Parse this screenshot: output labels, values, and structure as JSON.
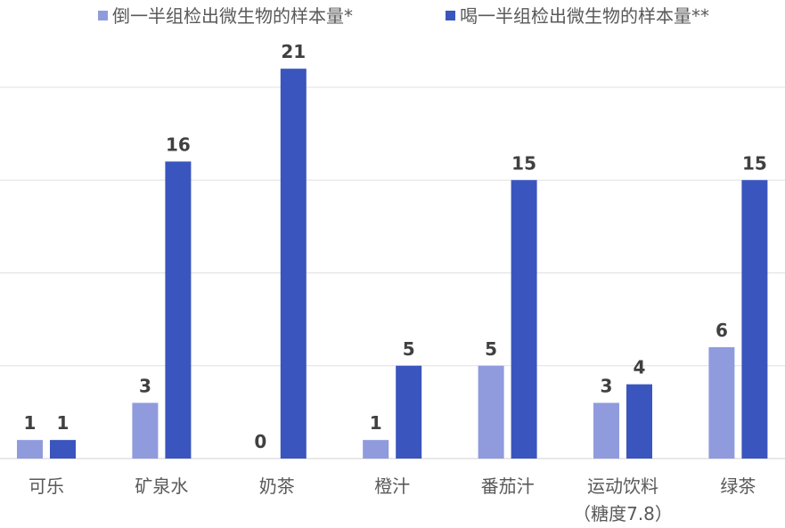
{
  "chart_data": {
    "type": "bar",
    "categories": [
      "可乐",
      "矿泉水",
      "奶茶",
      "橙汁",
      "番茄汁",
      "运动饮料\n（糖度7.8）",
      "绿茶"
    ],
    "series": [
      {
        "name": "倒一半组检出微生物的样本量*",
        "values": [
          1,
          3,
          0,
          1,
          5,
          3,
          6
        ],
        "color": "#8F9BDD"
      },
      {
        "name": "喝一半组检出微生物的样本量**",
        "values": [
          1,
          16,
          21,
          5,
          15,
          4,
          15
        ],
        "color": "#3A55BD"
      }
    ],
    "ylim": [
      0,
      20
    ],
    "grid_step": 5,
    "grid": true,
    "y_tick_labels_shown": false,
    "data_labels": true,
    "legend_position": "top"
  }
}
